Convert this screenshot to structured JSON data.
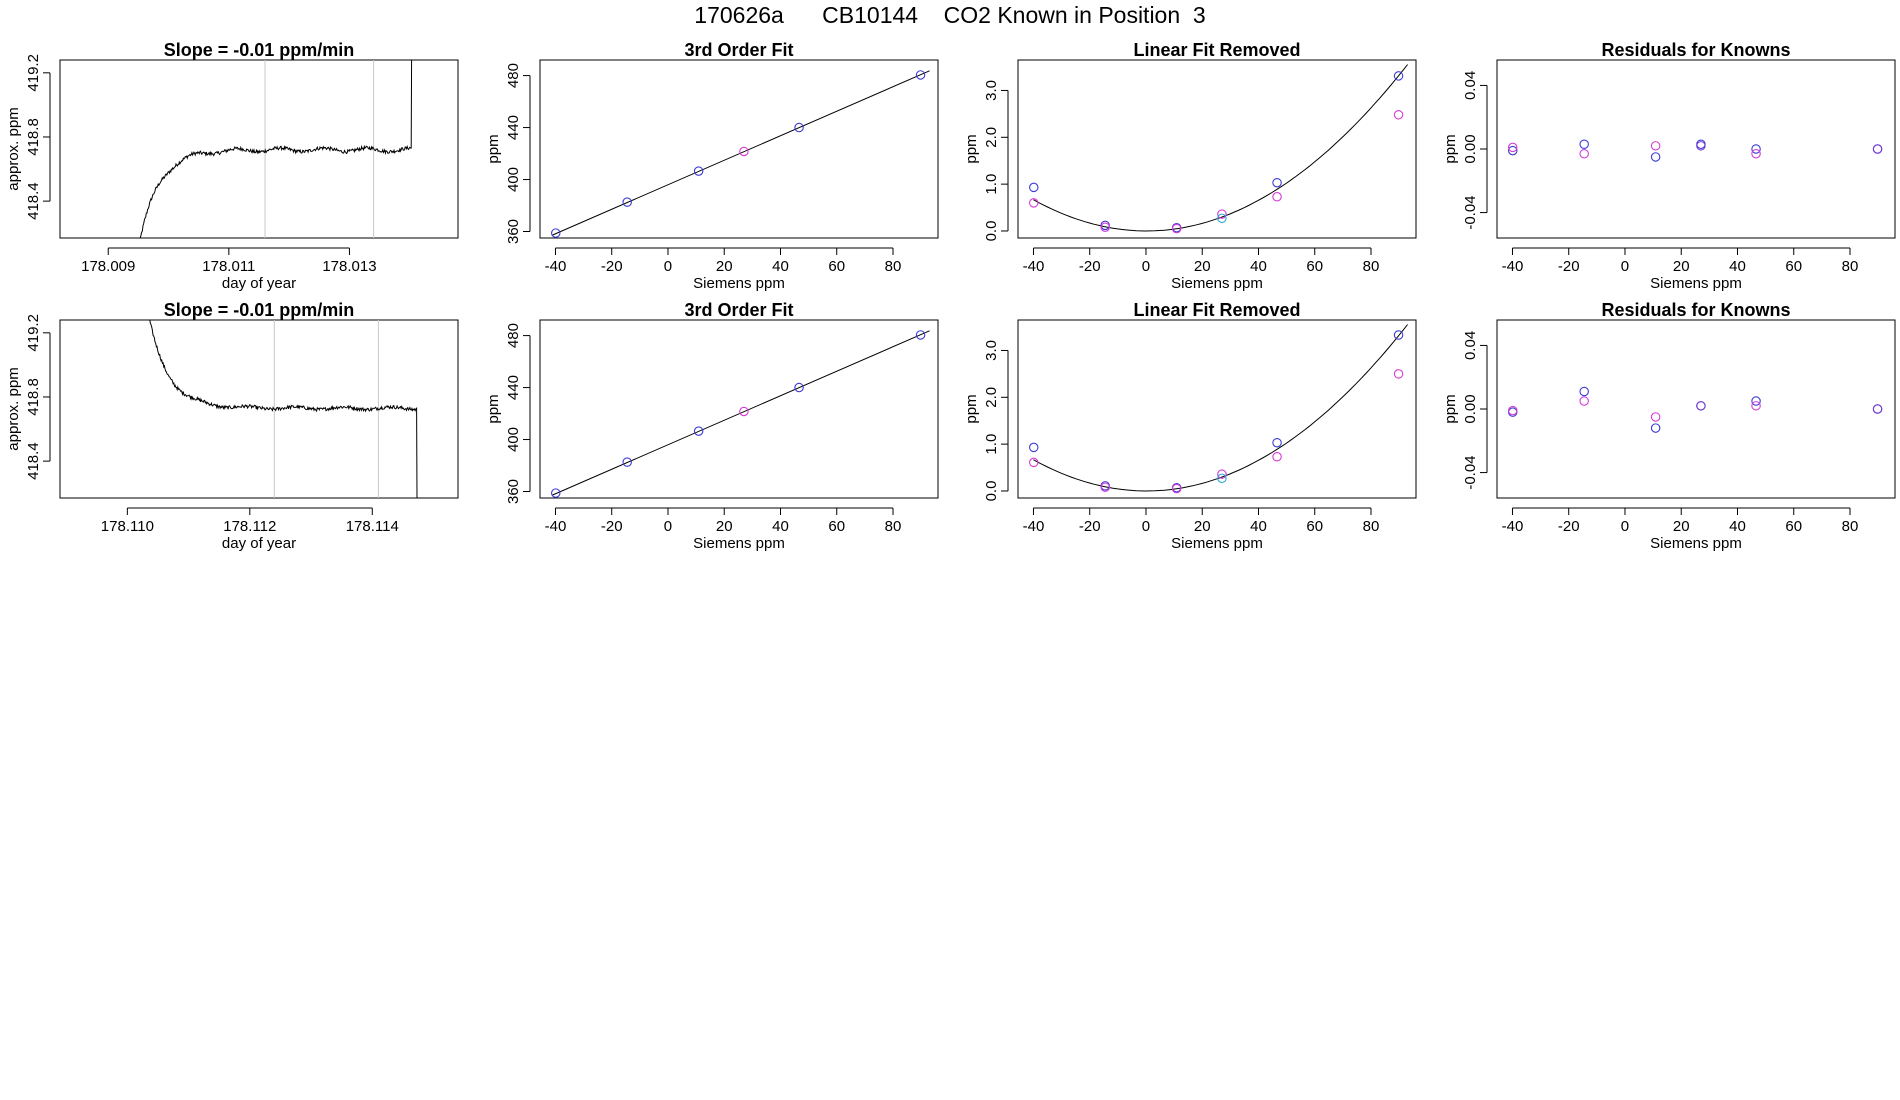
{
  "page": {
    "title": "170626a      CB10144    CO2 Known in Position  3"
  },
  "colors": {
    "blue": "#3b3bd6",
    "magenta": "#d63bd6",
    "cyan": "#27a9d6",
    "purple": "#7a3bd6",
    "line": "#000000",
    "vline": "#c8c8c8",
    "axis": "#000000"
  },
  "chart_data": [
    {
      "type": "line",
      "title": "Slope =  -0.01  ppm/min",
      "xlabel": "day of year",
      "ylabel": "approx. ppm",
      "xlim": [
        178.0082,
        178.0148
      ],
      "ylim": [
        418.17,
        419.28
      ],
      "xticks": [
        "178.009",
        "178.011",
        "178.013"
      ],
      "xtick_values": [
        178.009,
        178.011,
        178.013
      ],
      "yticks": [
        "418.4",
        "418.8",
        "419.2"
      ],
      "ytick_values": [
        418.4,
        418.8,
        419.2
      ],
      "vlines": [
        178.0116,
        178.0134
      ],
      "trace": {
        "start": 178.0095,
        "end": 178.0141,
        "shape": "rise-plateau-spike"
      }
    },
    {
      "type": "scatter",
      "title": "3rd Order Fit",
      "xlabel": "Siemens ppm",
      "ylabel": "ppm",
      "xlim": [
        -45.5,
        96
      ],
      "ylim": [
        355,
        492
      ],
      "xticks": [
        "-40",
        "-20",
        "0",
        "20",
        "40",
        "60",
        "80"
      ],
      "xtick_values": [
        -40,
        -20,
        0,
        20,
        40,
        60,
        80
      ],
      "yticks": [
        "360",
        "400",
        "440",
        "480"
      ],
      "ytick_values": [
        360,
        400,
        440,
        480
      ],
      "fit_line": {
        "x": [
          -41,
          93
        ],
        "y": [
          357.3,
          483.7
        ]
      },
      "series": [
        {
          "color": "blue",
          "x": [
            -39.9,
            -14.5,
            10.9,
            46.6,
            89.8
          ],
          "y": [
            358.8,
            382.6,
            406.5,
            440.0,
            480.5
          ]
        },
        {
          "color": "magenta",
          "x": [
            27.0
          ],
          "y": [
            421.6
          ]
        }
      ]
    },
    {
      "type": "scatter",
      "title": "Linear Fit Removed",
      "xlabel": "Siemens ppm",
      "ylabel": "ppm",
      "xlim": [
        -45.5,
        96
      ],
      "ylim": [
        -0.15,
        3.65
      ],
      "xticks": [
        "-40",
        "-20",
        "0",
        "20",
        "40",
        "60",
        "80"
      ],
      "xtick_values": [
        -40,
        -20,
        0,
        20,
        40,
        60,
        80
      ],
      "yticks": [
        "0.0",
        "1.0",
        "2.0",
        "3.0"
      ],
      "ytick_values": [
        0,
        1,
        2,
        3
      ],
      "curve": {
        "a": 0.0004,
        "b": -0.000158,
        "c": 0.0004125,
        "from": -40,
        "to": 93
      },
      "series": [
        {
          "color": "blue",
          "x": [
            -39.9,
            -14.5,
            10.9,
            46.6,
            89.8
          ],
          "y": [
            0.93,
            0.12,
            0.07,
            1.03,
            3.31
          ]
        },
        {
          "color": "magenta",
          "x": [
            -39.9,
            -14.5,
            10.9,
            27.0,
            46.6,
            89.8
          ],
          "y": [
            0.6,
            0.08,
            0.05,
            0.36,
            0.73,
            2.48
          ]
        },
        {
          "color": "cyan",
          "x": [
            27.0
          ],
          "y": [
            0.27
          ]
        }
      ]
    },
    {
      "type": "scatter",
      "title": "Residuals for Knowns",
      "xlabel": "Siemens ppm",
      "ylabel": "ppm",
      "xlim": [
        -45.5,
        96
      ],
      "ylim": [
        -0.056,
        0.056
      ],
      "xticks": [
        "-40",
        "-20",
        "0",
        "20",
        "40",
        "60",
        "80"
      ],
      "xtick_values": [
        -40,
        -20,
        0,
        20,
        40,
        60,
        80
      ],
      "yticks": [
        "-0.04",
        "0.00",
        "0.04"
      ],
      "ytick_values": [
        -0.04,
        0,
        0.04
      ],
      "series": [
        {
          "color": "blue",
          "x": [
            -39.9,
            -14.5,
            10.9,
            27.0,
            46.6,
            89.8
          ],
          "y": [
            -0.001,
            0.003,
            -0.005,
            0.003,
            0.0,
            0.0
          ]
        },
        {
          "color": "magenta",
          "x": [
            -39.9,
            -14.5,
            10.9,
            46.6
          ],
          "y": [
            0.001,
            -0.003,
            0.002,
            -0.003
          ]
        },
        {
          "color": "purple",
          "x": [
            27.0,
            89.8
          ],
          "y": [
            0.002,
            0.0
          ]
        }
      ]
    },
    {
      "type": "line",
      "title": "Slope =  -0.01  ppm/min",
      "xlabel": "day of year",
      "ylabel": "approx. ppm",
      "xlim": [
        178.1089,
        178.1154
      ],
      "ylim": [
        418.17,
        419.28
      ],
      "xticks": [
        "178.110",
        "178.112",
        "178.114"
      ],
      "xtick_values": [
        178.11,
        178.112,
        178.114
      ],
      "yticks": [
        "418.4",
        "418.8",
        "419.2"
      ],
      "ytick_values": [
        418.4,
        418.8,
        419.2
      ],
      "vlines": [
        178.1124,
        178.1141
      ],
      "trace": {
        "start": 178.1102,
        "end": 178.1148,
        "shape": "decay-plateau-drop"
      }
    },
    {
      "type": "scatter",
      "title": "3rd Order Fit",
      "xlabel": "Siemens ppm",
      "ylabel": "ppm",
      "xlim": [
        -45.5,
        96
      ],
      "ylim": [
        355,
        492
      ],
      "xticks": [
        "-40",
        "-20",
        "0",
        "20",
        "40",
        "60",
        "80"
      ],
      "xtick_values": [
        -40,
        -20,
        0,
        20,
        40,
        60,
        80
      ],
      "yticks": [
        "360",
        "400",
        "440",
        "480"
      ],
      "ytick_values": [
        360,
        400,
        440,
        480
      ],
      "fit_line": {
        "x": [
          -41,
          93
        ],
        "y": [
          357.3,
          483.7
        ]
      },
      "series": [
        {
          "color": "blue",
          "x": [
            -39.9,
            -14.5,
            10.9,
            46.6,
            89.8
          ],
          "y": [
            358.8,
            382.6,
            406.5,
            440.0,
            480.5
          ]
        },
        {
          "color": "magenta",
          "x": [
            27.0
          ],
          "y": [
            421.6
          ]
        }
      ]
    },
    {
      "type": "scatter",
      "title": "Linear Fit Removed",
      "xlabel": "Siemens ppm",
      "ylabel": "ppm",
      "xlim": [
        -45.5,
        96
      ],
      "ylim": [
        -0.15,
        3.65
      ],
      "xticks": [
        "-40",
        "-20",
        "0",
        "20",
        "40",
        "60",
        "80"
      ],
      "xtick_values": [
        -40,
        -20,
        0,
        20,
        40,
        60,
        80
      ],
      "yticks": [
        "0.0",
        "1.0",
        "2.0",
        "3.0"
      ],
      "ytick_values": [
        0,
        1,
        2,
        3
      ],
      "curve": {
        "a": 0.0004,
        "b": -0.000158,
        "c": 0.0004125,
        "from": -40,
        "to": 93
      },
      "series": [
        {
          "color": "blue",
          "x": [
            -39.9,
            -14.5,
            10.9,
            46.6,
            89.8
          ],
          "y": [
            0.93,
            0.11,
            0.07,
            1.03,
            3.33
          ]
        },
        {
          "color": "magenta",
          "x": [
            -39.9,
            -14.5,
            10.9,
            27.0,
            46.6,
            89.8
          ],
          "y": [
            0.61,
            0.08,
            0.05,
            0.36,
            0.73,
            2.5
          ]
        },
        {
          "color": "cyan",
          "x": [
            27.0
          ],
          "y": [
            0.27
          ]
        }
      ]
    },
    {
      "type": "scatter",
      "title": "Residuals for Knowns",
      "xlabel": "Siemens ppm",
      "ylabel": "ppm",
      "xlim": [
        -45.5,
        96
      ],
      "ylim": [
        -0.056,
        0.056
      ],
      "xticks": [
        "-40",
        "-20",
        "0",
        "20",
        "40",
        "60",
        "80"
      ],
      "xtick_values": [
        -40,
        -20,
        0,
        20,
        40,
        60,
        80
      ],
      "yticks": [
        "-0.04",
        "0.00",
        "0.04"
      ],
      "ytick_values": [
        -0.04,
        0,
        0.04
      ],
      "series": [
        {
          "color": "blue",
          "x": [
            -39.9,
            -14.5,
            10.9,
            27.0,
            46.6,
            89.8
          ],
          "y": [
            -0.002,
            0.011,
            -0.012,
            0.002,
            0.005,
            0.0
          ]
        },
        {
          "color": "magenta",
          "x": [
            -39.9,
            -14.5,
            10.9,
            46.6
          ],
          "y": [
            -0.001,
            0.005,
            -0.005,
            0.002
          ]
        },
        {
          "color": "purple",
          "x": [
            27.0,
            89.8
          ],
          "y": [
            0.002,
            0.0
          ]
        }
      ]
    }
  ]
}
